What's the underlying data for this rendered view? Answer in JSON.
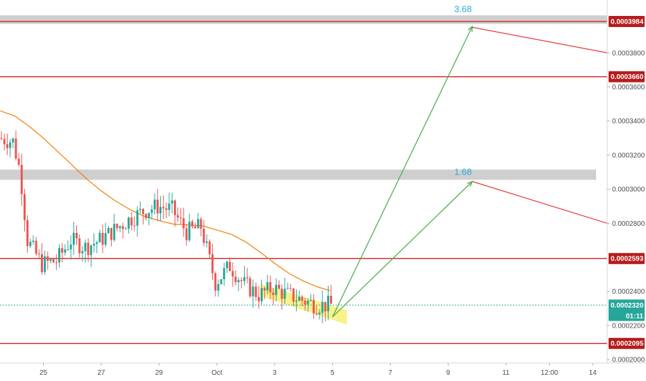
{
  "colors": {
    "up": "#26a69a",
    "down": "#ef5350",
    "level_line": "#d32f2f",
    "tag_bg": "#b71c1c",
    "ma": "#f57c00",
    "zone": "#c7c7c7",
    "channel": "#f5ea3c",
    "target_arrow": "#4caf50",
    "projection_arrow": "#e53935",
    "target_text": "#29a8e0",
    "current_tag": "#26a69a",
    "axis_text": "#4a4a4a"
  },
  "chart_data": {
    "type": "candlestick",
    "title": "",
    "x_axis": {
      "range": [
        "2019-09-23T12:00",
        "2019-10-14T12:00"
      ],
      "tick_labels": [
        "25",
        "27",
        "29",
        "Oct",
        "3",
        "5",
        "7",
        "9",
        "11",
        "12:00",
        "14"
      ],
      "tick_dates": [
        "2019-09-25",
        "2019-09-27",
        "2019-09-29",
        "2019-10-01",
        "2019-10-03",
        "2019-10-05",
        "2019-10-07",
        "2019-10-09",
        "2019-10-11",
        "2019-10-12T12:00",
        "2019-10-14"
      ]
    },
    "y_axis": {
      "range": [
        0.000198,
        0.000411
      ],
      "tick_labels": [
        "0.0002000",
        "0.0002200",
        "0.0002400",
        "0.0002800",
        "0.0003000",
        "0.0003200",
        "0.0003400",
        "0.0003600",
        "0.0003800"
      ],
      "tick_values": [
        0.0002,
        0.00022,
        0.00024,
        0.00028,
        0.0003,
        0.00032,
        0.00034,
        0.00036,
        0.00038
      ],
      "side": "right"
    },
    "horizontal_levels": [
      {
        "value": 0.0003984,
        "label": "0.0003984"
      },
      {
        "value": 0.000366,
        "label": "0.0003660"
      },
      {
        "value": 0.0002593,
        "label": "0.0002593"
      },
      {
        "value": 0.0002095,
        "label": "0.0002095"
      }
    ],
    "current_price": {
      "value": 0.000232,
      "label": "0.0002320",
      "countdown": "01:11"
    },
    "zones": [
      {
        "from": 0.000397,
        "to": 0.000402
      },
      {
        "from": 0.0003055,
        "to": 0.0003115
      }
    ],
    "targets": [
      {
        "label": "3.68",
        "date": "2019-10-09T20:00",
        "value": 0.000403
      },
      {
        "label": "1.68",
        "date": "2019-10-09T20:00",
        "value": 0.0003075
      }
    ],
    "arrows": [
      {
        "kind": "target",
        "from_date": "2019-10-05T00:00",
        "from_value": 0.000225,
        "to_date": "2019-10-09T20:00",
        "to_value": 0.0003955
      },
      {
        "kind": "target",
        "from_date": "2019-10-05T00:00",
        "from_value": 0.000225,
        "to_date": "2019-10-09T20:00",
        "to_value": 0.0003045
      },
      {
        "kind": "projection",
        "from_date": "2019-10-09T20:00",
        "from_value": 0.000395,
        "to_date": "2019-10-14T12:00",
        "to_value": 0.00038
      },
      {
        "kind": "projection",
        "from_date": "2019-10-09T20:00",
        "from_value": 0.0003045,
        "to_date": "2019-10-14T12:00",
        "to_value": 0.00028
      }
    ],
    "channel": {
      "upper": [
        [
          "2019-10-02T12:00",
          0.0002445
        ],
        [
          "2019-10-05T12:00",
          0.000229
        ]
      ],
      "lower": [
        [
          "2019-10-02T12:00",
          0.0002375
        ],
        [
          "2019-10-05T12:00",
          0.0002205
        ]
      ]
    },
    "moving_average": [
      [
        "2019-09-23T12:00",
        0.000346
      ],
      [
        "2019-09-24T00:00",
        0.000343
      ],
      [
        "2019-09-24T12:00",
        0.000337
      ],
      [
        "2019-09-25T00:00",
        0.00033
      ],
      [
        "2019-09-25T12:00",
        0.000322
      ],
      [
        "2019-09-26T00:00",
        0.000314
      ],
      [
        "2019-09-26T12:00",
        0.000306
      ],
      [
        "2019-09-27T00:00",
        0.000299
      ],
      [
        "2019-09-27T12:00",
        0.000293
      ],
      [
        "2019-09-28T00:00",
        0.000288
      ],
      [
        "2019-09-28T12:00",
        0.000284
      ],
      [
        "2019-09-29T00:00",
        0.0002815
      ],
      [
        "2019-09-29T12:00",
        0.0002795
      ],
      [
        "2019-09-30T00:00",
        0.000279
      ],
      [
        "2019-09-30T12:00",
        0.0002785
      ],
      [
        "2019-10-01T00:00",
        0.000276
      ],
      [
        "2019-10-01T12:00",
        0.0002735
      ],
      [
        "2019-10-02T00:00",
        0.000269
      ],
      [
        "2019-10-02T12:00",
        0.000263
      ],
      [
        "2019-10-03T00:00",
        0.0002565
      ],
      [
        "2019-10-03T12:00",
        0.0002505
      ],
      [
        "2019-10-04T00:00",
        0.000246
      ],
      [
        "2019-10-04T12:00",
        0.0002425
      ],
      [
        "2019-10-04T22:00",
        0.0002405
      ]
    ],
    "price_path": [
      [
        "2019-09-23T12:00",
        0.00033
      ],
      [
        "2019-09-24T00:00",
        0.000328
      ],
      [
        "2019-09-24T06:00",
        0.00031
      ],
      [
        "2019-09-24T12:00",
        0.00027
      ],
      [
        "2019-09-25T00:00",
        0.000256
      ],
      [
        "2019-09-25T12:00",
        0.000258
      ],
      [
        "2019-09-26T00:00",
        0.00027
      ],
      [
        "2019-09-26T12:00",
        0.000266
      ],
      [
        "2019-09-27T00:00",
        0.00027
      ],
      [
        "2019-09-27T12:00",
        0.000276
      ],
      [
        "2019-09-28T00:00",
        0.000282
      ],
      [
        "2019-09-28T12:00",
        0.000287
      ],
      [
        "2019-09-29T00:00",
        0.00029
      ],
      [
        "2019-09-29T12:00",
        0.000288
      ],
      [
        "2019-09-30T00:00",
        0.000275
      ],
      [
        "2019-09-30T12:00",
        0.000278
      ],
      [
        "2019-10-01T00:00",
        0.000245
      ],
      [
        "2019-10-01T12:00",
        0.000255
      ],
      [
        "2019-10-02T00:00",
        0.000244
      ],
      [
        "2019-10-02T12:00",
        0.000238
      ],
      [
        "2019-10-03T00:00",
        0.000242
      ],
      [
        "2019-10-03T12:00",
        0.000238
      ],
      [
        "2019-10-04T00:00",
        0.000235
      ],
      [
        "2019-10-04T12:00",
        0.000232
      ],
      [
        "2019-10-04T22:00",
        0.000232
      ]
    ]
  }
}
